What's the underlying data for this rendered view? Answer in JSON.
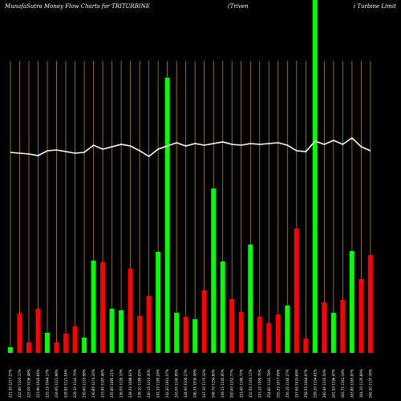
{
  "chart_data": {
    "type": "bar_line",
    "title": "MunafaSutra  Money Flow  Charts for TRITURBINE",
    "subtitle": "(Triven",
    "subtitle2": "i  Turbine  Limit",
    "categories": [
      "221.30 1217.27%",
      "222.80 1103.17%",
      "223.00 1036.48%",
      "223.90 1045.64%",
      "225.15 1044.17%",
      "226.95 1221.98%",
      "228.90 1121.54%",
      "229.10 1142.70%",
      "230.60 1153.98%",
      "230.85 1274.33%",
      "233.90 1187.46%",
      "235.80 1085.21%",
      "236.05 1126.10%",
      "238.30 1088.62%",
      "239.10 1189.05%",
      "240.15 1210.40%",
      "241.10 1180.24%",
      "242.20 1061.07%",
      "243.00 1140.95%",
      "244.90 1106.27%",
      "246.35 1039.58%",
      "247.10 1175.32%",
      "248.70 1154.60%",
      "249.15 1145.90%",
      "250.00 1152.77%",
      "251.40 1166.77%",
      "252.50 1163.17%",
      "253.10 1099.70%",
      "254.60 1141.78%",
      "255.25 1077.09%",
      "256.10 1140.27%",
      "257.60 1033.69%",
      "258.55 1064.97%",
      "259.20 1154.61%",
      "260.40 1120.50%",
      "261.50 1196.47%",
      "262.75 1162.19%",
      "263.80 1183.87%",
      "264.10 1135.89%",
      "265.30 1137.76%"
    ],
    "series": [
      {
        "name": "money flow",
        "colors": [
          "#00ff00",
          "#ff0000",
          "#ff0000",
          "#ff0000",
          "#00ff00",
          "#ff0000",
          "#ff0000",
          "#ff0000",
          "#00ff00",
          "#00ff00",
          "#ff0000",
          "#00ff00",
          "#00ff00",
          "#ff0000",
          "#ff0000",
          "#ff0000",
          "#00ff00",
          "#00ff00",
          "#00ff00",
          "#ff0000",
          "#00ff00",
          "#ff0000",
          "#00ff00",
          "#00ff00",
          "#ff0000",
          "#ff0000",
          "#00ff00",
          "#ff0000",
          "#ff0000",
          "#ff0000",
          "#00ff00",
          "#ff0000",
          "#ff0000",
          "#00ff00",
          "#ff0000",
          "#00ff00",
          "#ff0000",
          "#00ff00",
          "#ff0000",
          "#ff0000"
        ],
        "values": [
          7,
          49,
          13,
          55,
          25,
          13,
          24,
          33,
          19,
          115,
          113,
          55,
          53,
          105,
          46,
          71,
          126,
          343,
          50,
          45,
          42,
          78,
          205,
          114,
          67,
          51,
          135,
          45,
          37,
          48,
          59,
          155,
          18,
          440,
          63,
          50,
          66,
          127,
          92,
          122
        ]
      },
      {
        "name": "price",
        "color": "#ffffff",
        "values": [
          250,
          249,
          248,
          246,
          252,
          253,
          251,
          249,
          250,
          259,
          254,
          257,
          260,
          258,
          252,
          245,
          254,
          258,
          262,
          258,
          261,
          259,
          261,
          263,
          260,
          259,
          261,
          260,
          261,
          262,
          259,
          252,
          251,
          264,
          260,
          265,
          260,
          268,
          257,
          252
        ]
      }
    ],
    "ylim": [
      0,
      440
    ],
    "grid": true,
    "grid_color": "#b8860b",
    "background": "#000000"
  }
}
